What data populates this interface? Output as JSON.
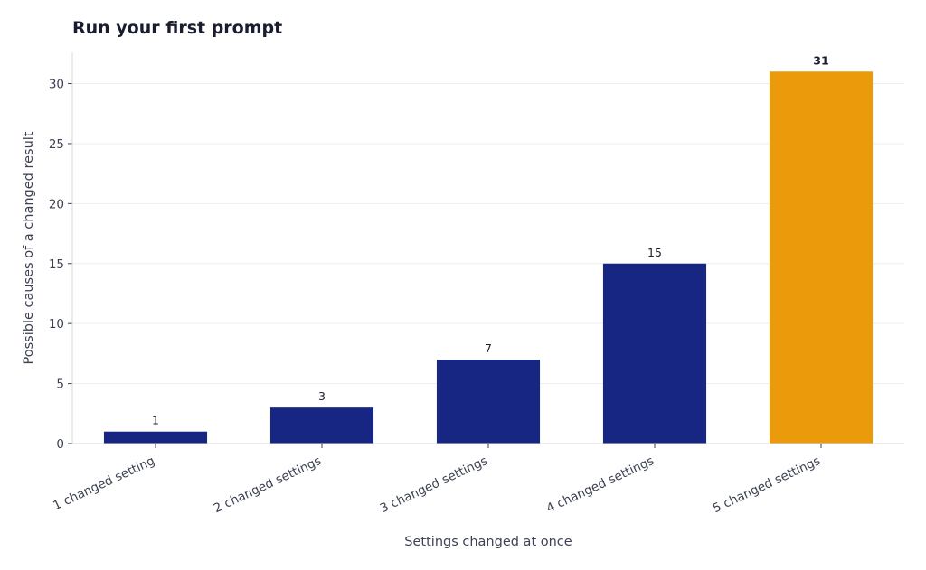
{
  "chart_data": {
    "type": "bar",
    "title": "Run your first prompt",
    "xlabel": "Settings changed at once",
    "ylabel": "Possible causes of a changed result",
    "categories": [
      "1 changed setting",
      "2 changed settings",
      "3 changed settings",
      "4 changed settings",
      "5 changed settings"
    ],
    "values": [
      1,
      3,
      7,
      15,
      31
    ],
    "highlight_index": 4,
    "ylim": [
      0,
      32.6
    ],
    "yticks": [
      0,
      5,
      10,
      15,
      20,
      25,
      30
    ],
    "grid": true,
    "legend": "none",
    "colors": {
      "bar": "#172682",
      "highlight": "#eb9a0c",
      "grid": "#eeeeee",
      "axis": "#d9d9d9",
      "text": "#3c4252",
      "title": "#1a1d2e"
    }
  }
}
